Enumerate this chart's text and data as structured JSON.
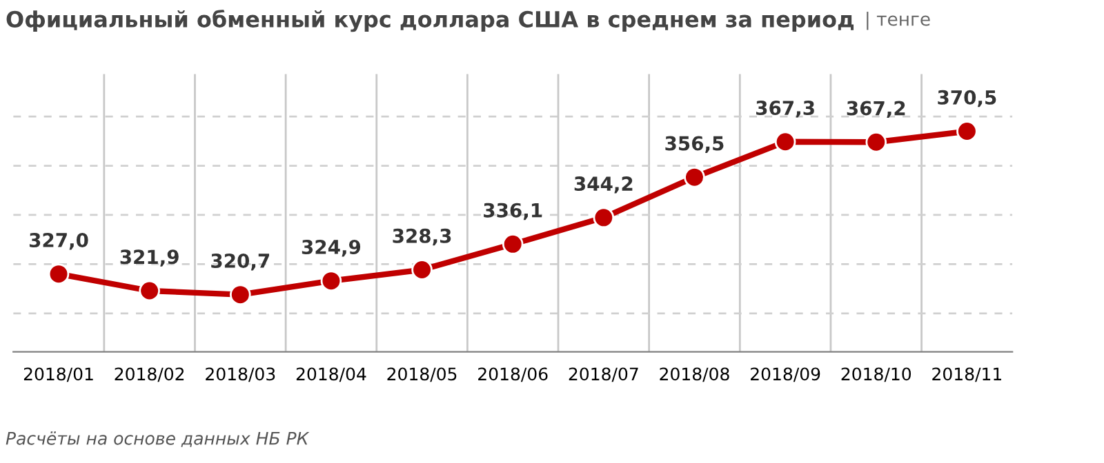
{
  "chart_data": {
    "type": "line",
    "title": "Официальный обменный курс доллара США в среднем за период",
    "subtitle": "| тенге",
    "categories": [
      "2018/01",
      "2018/02",
      "2018/03",
      "2018/04",
      "2018/05",
      "2018/06",
      "2018/07",
      "2018/08",
      "2018/09",
      "2018/10",
      "2018/11"
    ],
    "values": [
      327.0,
      321.9,
      320.7,
      324.9,
      328.3,
      336.1,
      344.2,
      356.5,
      367.3,
      367.2,
      370.5
    ],
    "value_labels": [
      "327,0",
      "321,9",
      "320,7",
      "324,9",
      "328,3",
      "336,1",
      "344,2",
      "356,5",
      "367,3",
      "367,2",
      "370,5"
    ],
    "color": "#c00000",
    "marker": "circle",
    "line_style": "solid",
    "grid": true,
    "tick_labels": "x",
    "legend": false,
    "annotations": [
      "Расчёты на основе данных НБ РК"
    ]
  }
}
